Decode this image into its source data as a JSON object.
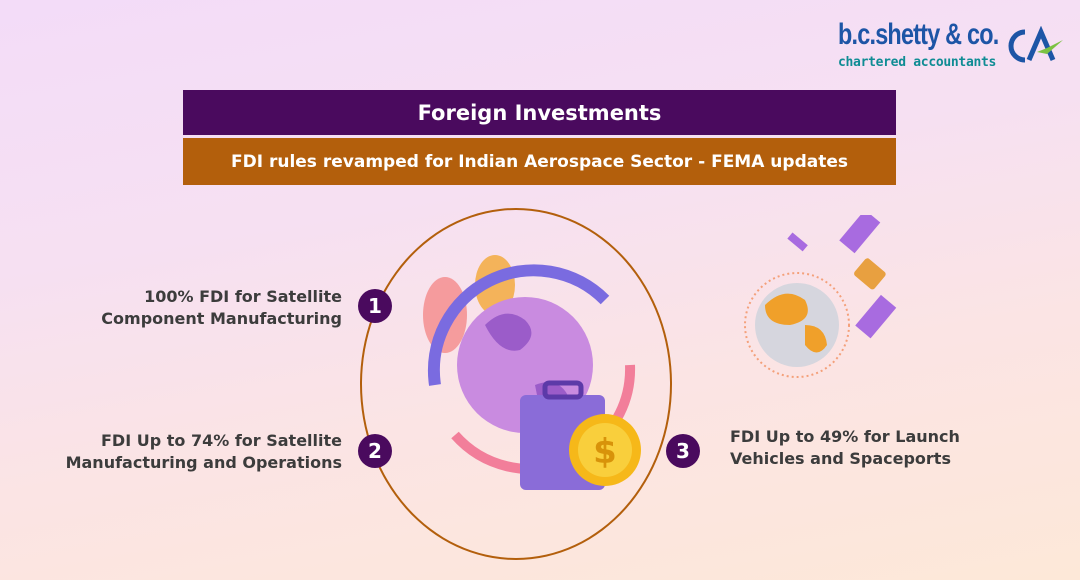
{
  "logo": {
    "name": "b.c.shetty & co.",
    "tagline": "chartered accountants",
    "mark": "CA"
  },
  "header": {
    "title": "Foreign Investments",
    "subtitle": "FDI rules revamped for Indian Aerospace Sector - FEMA updates"
  },
  "points": [
    {
      "number": "1",
      "line1": "100% FDI for Satellite",
      "line2": "Component Manufacturing"
    },
    {
      "number": "2",
      "line1": "FDI Up to 74% for Satellite",
      "line2": "Manufacturing and Operations"
    },
    {
      "number": "3",
      "line1": "FDI Up to 49% for Launch",
      "line2": "Vehicles and Spaceports"
    }
  ],
  "colors": {
    "purple": "#4a0a5e",
    "brown": "#b35f0c",
    "logo_blue": "#1d55a6",
    "logo_teal": "#0f8c94"
  }
}
